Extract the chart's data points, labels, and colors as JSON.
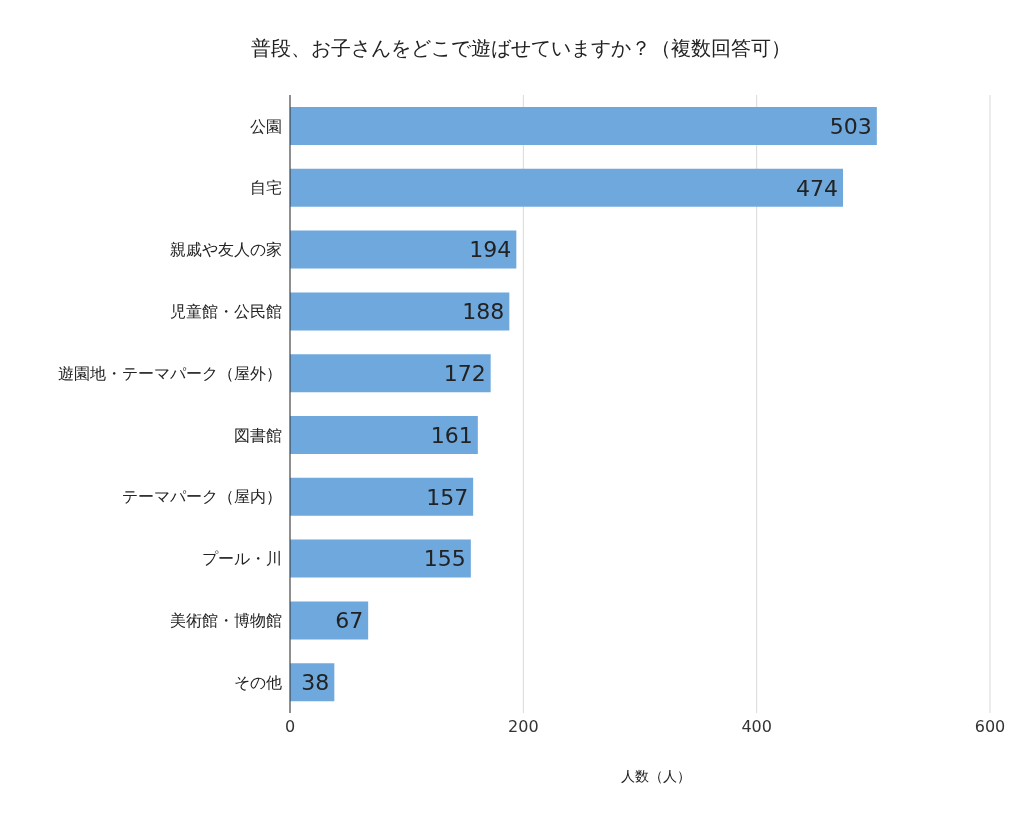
{
  "chart_data": {
    "type": "bar",
    "orientation": "horizontal",
    "title": "普段、お子さんをどこで遊ばせていますか？（複数回答可）",
    "xlabel": "人数（人）",
    "categories": [
      "公園",
      "自宅",
      "親戚や友人の家",
      "児童館・公民館",
      "遊園地・テーマパーク（屋外）",
      "図書館",
      "テーマパーク（屋内）",
      "プール・川",
      "美術館・博物館",
      "その他"
    ],
    "values": [
      503,
      474,
      194,
      188,
      172,
      161,
      157,
      155,
      67,
      38
    ],
    "color": "#6fa8dc",
    "xlim": [
      0,
      600
    ],
    "xticks": [
      0,
      200,
      400,
      600
    ],
    "grid": "x",
    "data_labels": true,
    "legend": false
  }
}
